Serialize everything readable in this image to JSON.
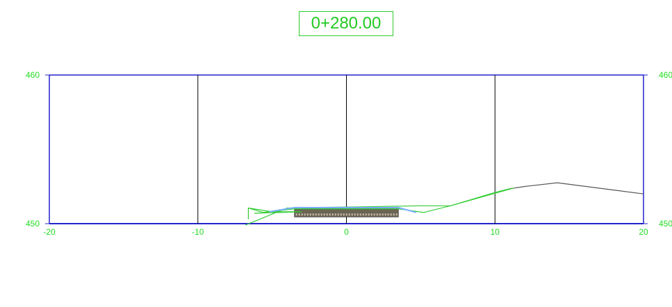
{
  "station": "0+280.00",
  "chart_data": {
    "type": "cross-section",
    "xlim": [
      -20,
      20
    ],
    "ylim": [
      450,
      460
    ],
    "x_ticks": [
      "-20",
      "-10",
      "0",
      "10",
      "20"
    ],
    "y_ticks_left": [
      "460",
      "450"
    ],
    "y_ticks_right": [
      "460",
      "450"
    ],
    "grid": "vertical lines every 10 units",
    "series": [
      {
        "kind": "existing-ground",
        "color": "#555555",
        "points": [
          [
            11.0,
            452.35
          ],
          [
            12.0,
            452.5
          ],
          [
            14.2,
            452.75
          ],
          [
            20.0,
            452.0
          ]
        ]
      },
      {
        "kind": "design-surface",
        "color": "#33cc33",
        "points": [
          [
            -6.6,
            451.05
          ],
          [
            -5.6,
            450.75
          ],
          [
            -3.5,
            451.0
          ],
          [
            3.5,
            451.0
          ],
          [
            5.2,
            450.75
          ],
          [
            7.0,
            451.2
          ],
          [
            10.0,
            452.1
          ],
          [
            11.0,
            452.35
          ]
        ]
      },
      {
        "kind": "daylight-left",
        "color": "#33cc33",
        "points": [
          [
            -6.6,
            450.3
          ],
          [
            -6.6,
            451.05
          ],
          [
            -5.0,
            450.8
          ],
          [
            -3.0,
            450.8
          ],
          [
            -6.2,
            450.7
          ]
        ]
      },
      {
        "kind": "subgrade",
        "color": "#33cc33",
        "points": [
          [
            -6.8,
            449.9
          ],
          [
            -4.0,
            451.05
          ],
          [
            5.0,
            451.2
          ],
          [
            7.0,
            451.2
          ],
          [
            11.3,
            452.4
          ]
        ]
      },
      {
        "kind": "pavement-top",
        "color": "#7ab0ff",
        "points": [
          [
            -5.2,
            450.8
          ],
          [
            -3.5,
            451.08
          ],
          [
            3.5,
            451.08
          ],
          [
            4.7,
            450.75
          ]
        ]
      }
    ],
    "pavement_block": {
      "x": [
        -3.5,
        3.5
      ],
      "y": [
        450.45,
        451.05
      ],
      "fill": "#6b6455"
    }
  }
}
